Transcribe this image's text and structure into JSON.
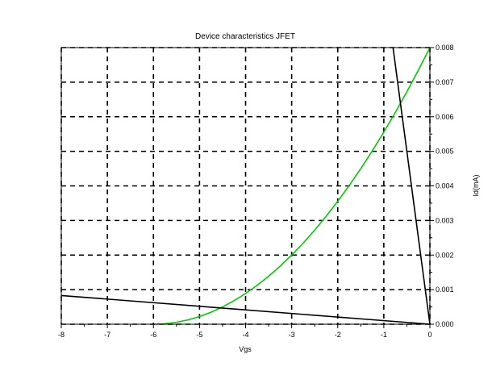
{
  "chart_data": {
    "type": "line",
    "title": "Device characteristics JFET",
    "xlabel": "Vgs",
    "ylabel": "Id(mA)",
    "xlim": [
      -8,
      0
    ],
    "ylim": [
      0,
      0.008
    ],
    "x_ticks": [
      "-8",
      "-7",
      "-6",
      "-5",
      "-4",
      "-3",
      "-2",
      "-1",
      "0"
    ],
    "y_ticks": [
      "0.000",
      "0.001",
      "0.002",
      "0.003",
      "0.004",
      "0.005",
      "0.006",
      "0.007",
      "0.008"
    ],
    "y_axis_side": "right",
    "grid": "dashed",
    "legend": "none",
    "series": [
      {
        "color": "#00cc00",
        "x": [
          -6,
          -5.75,
          -5.5,
          -5.25,
          -5,
          -4.75,
          -4.5,
          -4.25,
          -4,
          -3.75,
          -3.5,
          -3.25,
          -3,
          -2.75,
          -2.5,
          -2.25,
          -2,
          -1.75,
          -1.5,
          -1.25,
          -1,
          -0.75,
          -0.5,
          -0.25,
          0
        ],
        "y": [
          0,
          1.39e-05,
          5.56e-05,
          0.000125,
          0.000222,
          0.000347,
          0.0005,
          0.000681,
          0.000889,
          0.001125,
          0.001389,
          0.001681,
          0.002,
          0.002347,
          0.002722,
          0.003125,
          0.003556,
          0.004014,
          0.0045,
          0.005014,
          0.005556,
          0.006125,
          0.006722,
          0.007347,
          0.008
        ]
      },
      {
        "color": "#000000",
        "x": [
          -8,
          0
        ],
        "y": [
          0.00083,
          0
        ]
      },
      {
        "color": "#000000",
        "x": [
          -0.8,
          0
        ],
        "y": [
          0.008,
          0
        ]
      }
    ]
  }
}
